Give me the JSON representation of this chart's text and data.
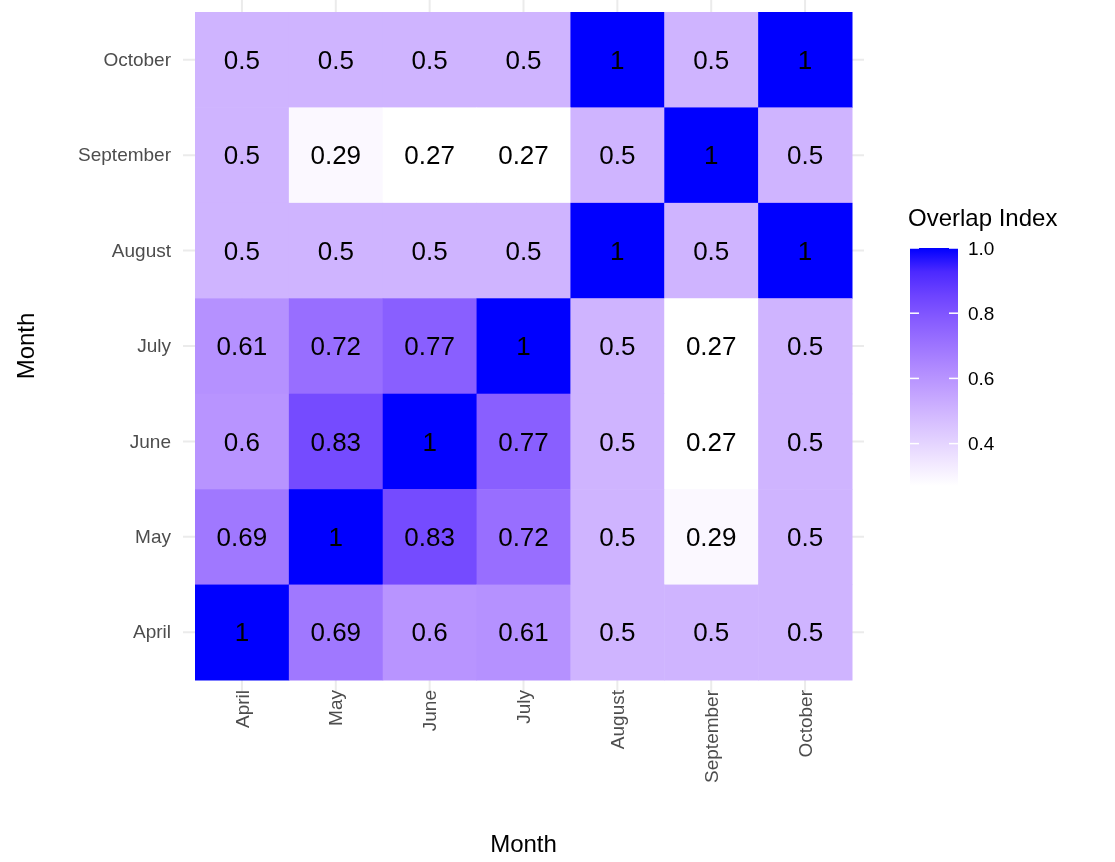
{
  "chart_data": {
    "type": "heatmap",
    "xlabel": "Month",
    "ylabel": "Month",
    "legend_title": "Overlap Index",
    "categories": [
      "April",
      "May",
      "June",
      "July",
      "August",
      "September",
      "October"
    ],
    "y_categories": [
      "October",
      "September",
      "August",
      "July",
      "June",
      "May",
      "April"
    ],
    "cells": [
      [
        0.5,
        0.5,
        0.5,
        0.5,
        1,
        0.5,
        1
      ],
      [
        0.5,
        0.29,
        0.27,
        0.27,
        0.5,
        1,
        0.5
      ],
      [
        0.5,
        0.5,
        0.5,
        0.5,
        1,
        0.5,
        1
      ],
      [
        0.61,
        0.72,
        0.77,
        1,
        0.5,
        0.27,
        0.5
      ],
      [
        0.6,
        0.83,
        1,
        0.77,
        0.5,
        0.27,
        0.5
      ],
      [
        0.69,
        1,
        0.83,
        0.72,
        0.5,
        0.29,
        0.5
      ],
      [
        1,
        0.69,
        0.6,
        0.61,
        0.5,
        0.5,
        0.5
      ]
    ],
    "clim": [
      0.27,
      1
    ],
    "cticks": [
      0.4,
      0.6,
      0.8,
      {
        "value": 1,
        "label": "1.0"
      }
    ],
    "data_labels": true,
    "grid": true
  }
}
